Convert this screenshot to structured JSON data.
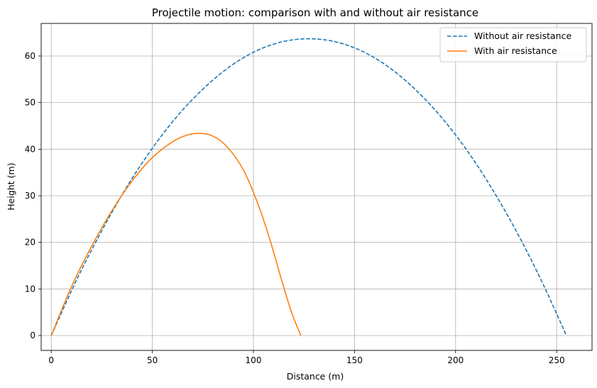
{
  "chart_data": {
    "type": "line",
    "title": "Projectile motion: comparison with and without air resistance",
    "xlabel": "Distance (m)",
    "ylabel": "Height (m)",
    "xlim": [
      -5,
      267.5
    ],
    "ylim": [
      -3.2,
      67
    ],
    "xticks": [
      0,
      50,
      100,
      150,
      200,
      250
    ],
    "yticks": [
      0,
      10,
      20,
      30,
      40,
      50,
      60
    ],
    "grid": true,
    "legend_position": "top-right",
    "series": [
      {
        "name": "Without air resistance",
        "color": "#1f77b4",
        "style": "dashed",
        "x": [
          0,
          12.7,
          25.5,
          38.2,
          51,
          63.7,
          76.5,
          89.2,
          101.9,
          114.7,
          127.4,
          140.2,
          152.9,
          165.7,
          178.4,
          191.1,
          203.9,
          216.6,
          229.4,
          242.1,
          254.8
        ],
        "y": [
          0,
          12.1,
          22.9,
          32.5,
          40.8,
          47.8,
          53.5,
          58,
          61.2,
          63.1,
          63.7,
          63.1,
          61.2,
          58,
          53.5,
          47.8,
          40.8,
          32.5,
          22.9,
          12.1,
          0
        ]
      },
      {
        "name": "With air resistance",
        "color": "#ff7f0e",
        "style": "solid",
        "x": [
          0,
          10,
          20,
          30,
          40,
          50,
          60,
          67,
          73.5,
          80,
          87,
          95,
          102,
          108,
          114,
          119,
          123.5
        ],
        "y": [
          0,
          10.5,
          19.2,
          26.8,
          33.2,
          38.2,
          41.6,
          43,
          43.4,
          42.8,
          40.5,
          35.6,
          28.5,
          20.8,
          11.8,
          4.8,
          0
        ]
      }
    ]
  }
}
